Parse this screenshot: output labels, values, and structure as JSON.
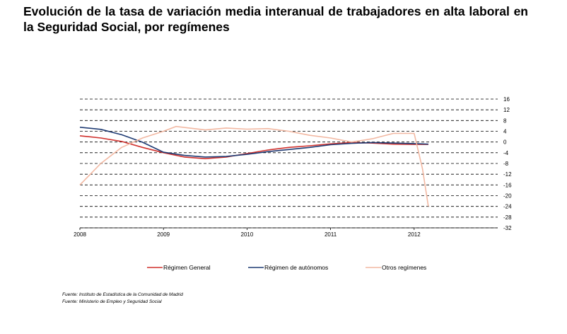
{
  "title": "Evolución de la tasa de variación media interanual de trabajadores en alta laboral en la Seguridad Social, por  regímenes",
  "sources": [
    "Fuente: Instituto de Estadística de la Comunidad de Madrid",
    "Fuente: Ministerio de Empleo y Seguridad Social"
  ],
  "chart_data": {
    "type": "line",
    "ylim": [
      -32,
      16
    ],
    "yticks": [
      16,
      12,
      8,
      4,
      0,
      -4,
      -8,
      -12,
      -16,
      -20,
      -24,
      -28,
      -32
    ],
    "xlim": [
      2008,
      2013.0
    ],
    "xticks": [
      {
        "value": 2008,
        "label": "2008"
      },
      {
        "value": 2009,
        "label": "2009"
      },
      {
        "value": 2010,
        "label": "2010"
      },
      {
        "value": 2011,
        "label": "2011"
      },
      {
        "value": 2012,
        "label": "2012"
      }
    ],
    "grid": "horizontal-dashed",
    "legend_position": "bottom",
    "series": [
      {
        "name": "Régimen General",
        "color": "#d0312d",
        "x": [
          2008.0,
          2008.25,
          2008.5,
          2008.75,
          2009.0,
          2009.25,
          2009.5,
          2009.75,
          2010.0,
          2010.25,
          2010.5,
          2010.75,
          2011.0,
          2011.25,
          2011.5,
          2011.75,
          2012.0,
          2012.17
        ],
        "y": [
          2.3,
          1.5,
          0.2,
          -2.0,
          -4.0,
          -5.6,
          -6.2,
          -5.6,
          -4.3,
          -3.0,
          -2.0,
          -1.4,
          -0.7,
          -0.2,
          -0.4,
          -0.8,
          -0.9,
          -0.9
        ]
      },
      {
        "name": "Régimen de autónomos",
        "color": "#1f3b73",
        "x": [
          2008.0,
          2008.25,
          2008.5,
          2008.75,
          2009.0,
          2009.25,
          2009.5,
          2009.75,
          2010.0,
          2010.25,
          2010.5,
          2010.75,
          2011.0,
          2011.25,
          2011.5,
          2011.75,
          2012.0,
          2012.17
        ],
        "y": [
          5.5,
          4.7,
          2.7,
          -0.1,
          -3.8,
          -5.0,
          -5.6,
          -5.4,
          -4.6,
          -3.6,
          -2.8,
          -2.0,
          -1.0,
          -0.5,
          -0.2,
          -0.4,
          -0.6,
          -0.8
        ]
      },
      {
        "name": "Otros regímenes",
        "color": "#f2b8a2",
        "x": [
          2008.0,
          2008.25,
          2008.5,
          2008.75,
          2009.0,
          2009.15,
          2009.5,
          2009.75,
          2010.0,
          2010.25,
          2010.5,
          2010.75,
          2011.0,
          2011.25,
          2011.5,
          2011.75,
          2012.0,
          2012.1,
          2012.17
        ],
        "y": [
          -16.0,
          -8.0,
          -2.0,
          1.5,
          4.0,
          5.8,
          4.5,
          5.2,
          4.8,
          5.0,
          4.0,
          2.5,
          1.5,
          0.0,
          1.2,
          3.2,
          3.2,
          -10.0,
          -24.0
        ]
      }
    ]
  }
}
